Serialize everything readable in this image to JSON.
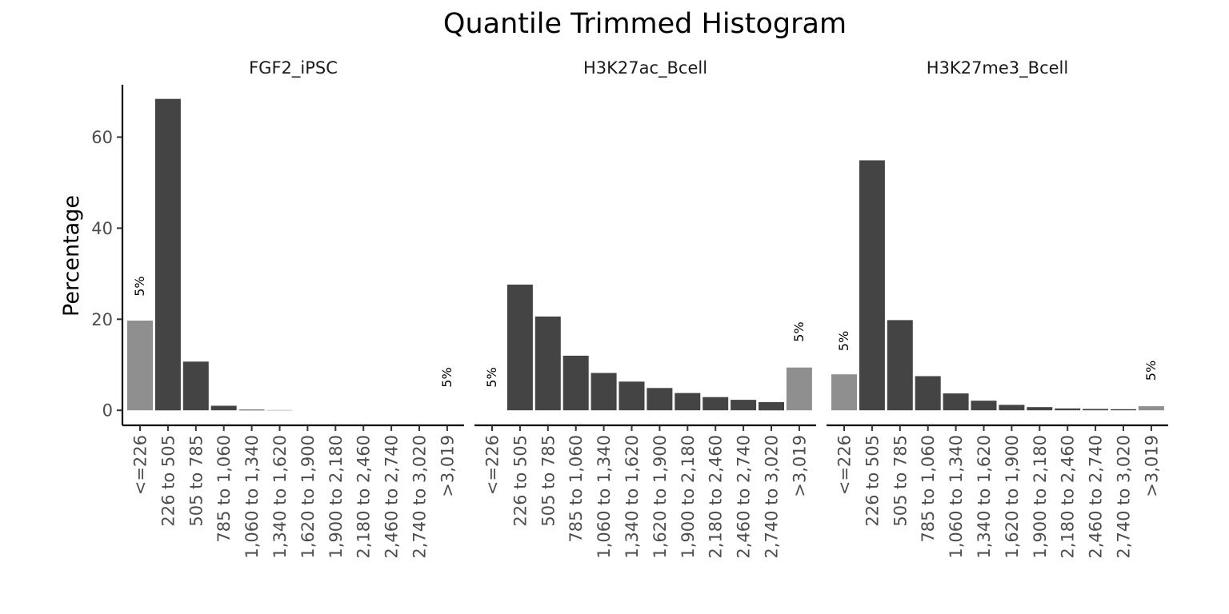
{
  "chart_data": {
    "type": "bar",
    "title": "Quantile Trimmed Histogram",
    "xlabel": "",
    "ylabel": "Percentage",
    "ylim": [
      -3.3,
      71.5
    ],
    "y_ticks": [
      0,
      20,
      40,
      60
    ],
    "y_tick_labels": [
      "0",
      "20",
      "40",
      "60"
    ],
    "grid": false,
    "legend": "none",
    "categories": [
      "<=226",
      "226 to 505",
      "505 to 785",
      "785 to 1,060",
      "1,060 to 1,340",
      "1,340 to 1,620",
      "1,620 to 1,900",
      "1,900 to 2,180",
      "2,180 to 2,460",
      "2,460 to 2,740",
      "2,740 to 3,020",
      ">3,019"
    ],
    "colors": {
      "bar": "#444444",
      "tail": "#8f8f8f"
    },
    "panels": [
      {
        "name": "FGF2_iPSC",
        "values": [
          19.7,
          68.4,
          10.7,
          1.0,
          0.15,
          0.05,
          0,
          0,
          0,
          0,
          0,
          0
        ],
        "tail_labels": [
          "5%",
          "5%"
        ],
        "tail_label_y": [
          25,
          5
        ]
      },
      {
        "name": "H3K27ac_Bcell",
        "values": [
          0,
          27.6,
          20.6,
          12.0,
          8.2,
          6.3,
          4.9,
          3.8,
          2.9,
          2.3,
          1.8,
          9.4
        ],
        "tail_labels": [
          "5%",
          "5%"
        ],
        "tail_label_y": [
          5,
          15
        ]
      },
      {
        "name": "H3K27me3_Bcell",
        "values": [
          7.9,
          54.9,
          19.8,
          7.5,
          3.7,
          2.1,
          1.2,
          0.7,
          0.4,
          0.3,
          0.25,
          0.9
        ],
        "tail_labels": [
          "5%",
          "5%"
        ],
        "tail_label_y": [
          13,
          6.5
        ]
      }
    ]
  }
}
